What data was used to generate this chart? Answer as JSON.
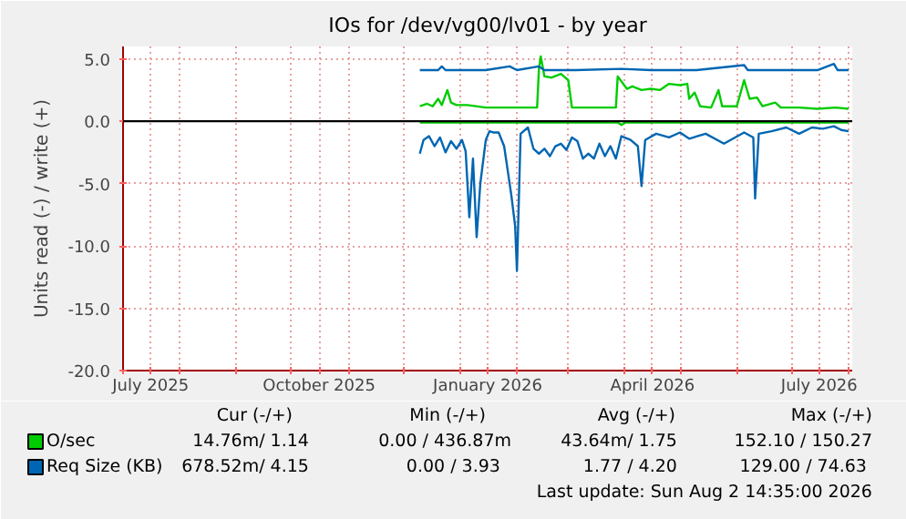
{
  "chart_data": {
    "type": "line",
    "title": "IOs for /dev/vg00/lv01 - by year",
    "ylabel": "Units read (-) / write (+)",
    "series": [
      {
        "name": "O/sec",
        "color": "#00cc00",
        "x": [
          "2025-12-10",
          "2025-12-14",
          "2025-12-17",
          "2025-12-20",
          "2025-12-22",
          "2025-12-25",
          "2025-12-27",
          "2025-12-30",
          "2026-01-05",
          "2026-01-15",
          "2026-01-25",
          "2026-02-05",
          "2026-02-12",
          "2026-02-13",
          "2026-02-14",
          "2026-02-16",
          "2026-02-20",
          "2026-02-25",
          "2026-03-01",
          "2026-03-03",
          "2026-03-15",
          "2026-03-27",
          "2026-03-28",
          "2026-04-02",
          "2026-04-05",
          "2026-04-10",
          "2026-04-15",
          "2026-04-20",
          "2026-04-25",
          "2026-05-01",
          "2026-05-05",
          "2026-05-06",
          "2026-05-09",
          "2026-05-12",
          "2026-05-18",
          "2026-05-22",
          "2026-05-24",
          "2026-06-01",
          "2026-06-05",
          "2026-06-08",
          "2026-06-12",
          "2026-06-15",
          "2026-06-22",
          "2026-06-25",
          "2026-07-05",
          "2026-07-15",
          "2026-07-25",
          "2026-08-01"
        ],
        "values": [
          1.2,
          1.4,
          1.2,
          1.8,
          1.3,
          2.5,
          1.5,
          1.3,
          1.3,
          1.1,
          1.1,
          1.1,
          1.1,
          4.2,
          5.2,
          3.6,
          3.5,
          3.8,
          3.3,
          1.1,
          1.1,
          1.1,
          3.6,
          2.6,
          2.8,
          2.5,
          2.6,
          2.5,
          3.0,
          2.9,
          3.0,
          1.8,
          2.3,
          1.2,
          1.1,
          2.5,
          1.2,
          1.2,
          3.3,
          1.8,
          1.9,
          1.2,
          1.5,
          1.1,
          1.1,
          1.0,
          1.1,
          1.0
        ]
      },
      {
        "name": "Req Size (KB)",
        "color": "#0066b3",
        "x": [
          "2025-12-10",
          "2025-12-20",
          "2025-12-22",
          "2025-12-24",
          "2026-01-15",
          "2026-01-28",
          "2026-02-01",
          "2026-02-13",
          "2026-02-16",
          "2026-03-05",
          "2026-03-30",
          "2026-04-15",
          "2026-05-10",
          "2026-06-05",
          "2026-06-07",
          "2026-07-15",
          "2026-07-24",
          "2026-07-26",
          "2026-08-01"
        ],
        "values": [
          4.1,
          4.1,
          4.4,
          4.1,
          4.1,
          4.4,
          4.1,
          4.4,
          4.1,
          4.1,
          4.2,
          4.1,
          4.1,
          4.5,
          4.1,
          4.1,
          4.6,
          4.1,
          4.1
        ]
      },
      {
        "color": "#00cc00",
        "x": [
          "2025-12-10",
          "2026-03-28",
          "2026-03-30",
          "2026-04-01",
          "2026-08-01"
        ],
        "values": [
          -0.1,
          -0.1,
          -0.3,
          -0.1,
          -0.1
        ]
      },
      {
        "color": "#0066b3",
        "x": [
          "2025-12-10",
          "2025-12-12",
          "2025-12-15",
          "2025-12-18",
          "2025-12-21",
          "2025-12-24",
          "2025-12-27",
          "2025-12-30",
          "2026-01-02",
          "2026-01-04",
          "2026-01-06",
          "2026-01-08",
          "2026-01-10",
          "2026-01-12",
          "2026-01-15",
          "2026-01-17",
          "2026-01-19",
          "2026-01-22",
          "2026-01-25",
          "2026-01-27",
          "2026-01-29",
          "2026-01-31",
          "2026-02-01",
          "2026-02-03",
          "2026-02-07",
          "2026-02-10",
          "2026-02-13",
          "2026-02-16",
          "2026-02-19",
          "2026-02-22",
          "2026-02-25",
          "2026-02-28",
          "2026-03-03",
          "2026-03-06",
          "2026-03-09",
          "2026-03-12",
          "2026-03-15",
          "2026-03-18",
          "2026-03-21",
          "2026-03-24",
          "2026-03-27",
          "2026-03-30",
          "2026-04-04",
          "2026-04-08",
          "2026-04-10",
          "2026-04-12",
          "2026-04-18",
          "2026-04-25",
          "2026-05-01",
          "2026-05-06",
          "2026-05-15",
          "2026-05-25",
          "2026-06-05",
          "2026-06-10",
          "2026-06-11",
          "2026-06-13",
          "2026-06-20",
          "2026-06-28",
          "2026-07-05",
          "2026-07-12",
          "2026-07-18",
          "2026-07-24",
          "2026-07-28",
          "2026-08-01"
        ],
        "values": [
          -2.6,
          -1.5,
          -1.2,
          -2.0,
          -1.3,
          -2.5,
          -1.6,
          -2.2,
          -1.5,
          -2.4,
          -7.7,
          -3.0,
          -9.3,
          -5.0,
          -1.5,
          -0.8,
          -0.9,
          -0.9,
          -2.0,
          -4.0,
          -6.0,
          -8.4,
          -12.0,
          -1.0,
          -0.5,
          -2.2,
          -2.6,
          -2.2,
          -2.8,
          -2.0,
          -1.8,
          -2.3,
          -1.3,
          -1.6,
          -3.0,
          -2.6,
          -3.0,
          -1.8,
          -2.8,
          -2.0,
          -3.0,
          -1.2,
          -1.5,
          -2.0,
          -5.2,
          -1.5,
          -1.0,
          -1.3,
          -0.9,
          -1.4,
          -1.0,
          -1.8,
          -0.9,
          -1.3,
          -6.2,
          -1.0,
          -0.8,
          -0.5,
          -1.0,
          -0.5,
          -0.6,
          -0.4,
          -0.7,
          -0.8
        ]
      }
    ],
    "xlim": [
      "2025-07-01",
      "2026-08-03"
    ],
    "xticks": [
      {
        "value": "2025-07-01",
        "label": null
      },
      {
        "value": "2025-07-16",
        "label": "July 2025"
      },
      {
        "value": "2025-08-01",
        "label": null
      },
      {
        "value": "2025-09-01",
        "label": null
      },
      {
        "value": "2025-10-01",
        "label": null
      },
      {
        "value": "2025-10-16",
        "label": "October 2025"
      },
      {
        "value": "2025-11-01",
        "label": null
      },
      {
        "value": "2025-12-01",
        "label": null
      },
      {
        "value": "2026-01-01",
        "label": null
      },
      {
        "value": "2026-01-16",
        "label": "January 2026"
      },
      {
        "value": "2026-02-01",
        "label": null
      },
      {
        "value": "2026-03-01",
        "label": null
      },
      {
        "value": "2026-04-01",
        "label": null
      },
      {
        "value": "2026-04-16",
        "label": "April 2026"
      },
      {
        "value": "2026-05-01",
        "label": null
      },
      {
        "value": "2026-06-01",
        "label": null
      },
      {
        "value": "2026-07-01",
        "label": null
      },
      {
        "value": "2026-07-16",
        "label": "July 2026"
      },
      {
        "value": "2026-08-01",
        "label": null
      }
    ],
    "ylim": [
      -20,
      6
    ],
    "yticks": [
      {
        "value": -20,
        "label": "-20.0"
      },
      {
        "value": -15,
        "label": "-15.0"
      },
      {
        "value": -10,
        "label": "-10.0"
      },
      {
        "value": -5,
        "label": "-5.0"
      },
      {
        "value": 0,
        "label": "0.0"
      },
      {
        "value": 5,
        "label": "5.0"
      }
    ],
    "ref_lines": [
      {
        "axis": "y",
        "value": 0,
        "color": "#000000"
      }
    ],
    "grid": true,
    "legend": "bottom left",
    "annotations": [
      "Cur (-/+)",
      "Min (-/+)",
      "Avg (-/+)",
      "Max (-/+)",
      "14.76m/   1.14",
      "0.00 / 436.87m",
      "43.64m/   1.75",
      "152.10 / 150.27",
      "678.52m/   4.15",
      "0.00 /   3.93",
      "1.77 /   4.20",
      "129.00 /  74.63",
      "Last update: Sun Aug  2 14:35:00 2026"
    ]
  }
}
